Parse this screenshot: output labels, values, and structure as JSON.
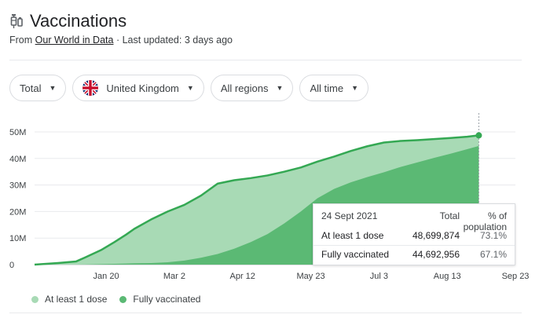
{
  "header": {
    "title": "Vaccinations",
    "icon": "syringe-icon"
  },
  "source": {
    "prefix": "From",
    "link": "Our World in Data",
    "updated": "· Last updated: 3 days ago"
  },
  "filters": [
    {
      "label": "Total"
    },
    {
      "label": "United Kingdom",
      "icon": "uk-flag-icon"
    },
    {
      "label": "All regions"
    },
    {
      "label": "All time"
    }
  ],
  "colors": {
    "light": "#a8dab5",
    "dark": "#5bb974",
    "line": "#34a853"
  },
  "tooltip": {
    "date": "24 Sept 2021",
    "col_total": "Total",
    "col_pct": "% of population",
    "rows": [
      {
        "label": "At least 1 dose",
        "total": "48,699,874",
        "pct": "73.1%"
      },
      {
        "label": "Fully vaccinated",
        "total": "44,692,956",
        "pct": "67.1%"
      }
    ]
  },
  "legend": [
    {
      "label": "At least 1 dose",
      "color": "#a8dab5"
    },
    {
      "label": "Fully vaccinated",
      "color": "#5bb974"
    }
  ],
  "chart_data": {
    "type": "area",
    "y_ticks": [
      "0",
      "10M",
      "20M",
      "30M",
      "40M",
      "50M"
    ],
    "x_ticks": [
      "Jan 20",
      "Mar 2",
      "Apr 12",
      "May 23",
      "Jul 3",
      "Aug 13",
      "Sep 23"
    ],
    "ylim": [
      0,
      50
    ],
    "y_unit": "millions",
    "x_days": [
      0,
      14,
      25,
      30,
      40,
      48,
      55,
      60,
      70,
      80,
      90,
      100,
      110,
      120,
      130,
      140,
      150,
      160,
      170,
      180,
      190,
      200,
      210,
      220,
      230,
      240,
      250,
      260,
      267
    ],
    "x_dates": [
      "2020-12-08",
      "2020-12-22",
      "2021-01-02",
      "2021-01-07",
      "2021-01-17",
      "2021-01-25",
      "2021-02-01",
      "2021-02-06",
      "2021-02-16",
      "2021-02-26",
      "2021-03-08",
      "2021-03-18",
      "2021-03-28",
      "2021-04-07",
      "2021-04-17",
      "2021-04-27",
      "2021-05-07",
      "2021-05-17",
      "2021-05-27",
      "2021-06-06",
      "2021-06-16",
      "2021-06-26",
      "2021-07-06",
      "2021-07-16",
      "2021-07-26",
      "2021-08-05",
      "2021-08-15",
      "2021-08-25",
      "2021-09-01"
    ],
    "x_tick_dates": [
      "2021-01-20",
      "2021-03-02",
      "2021-04-12",
      "2021-05-23",
      "2021-07-03",
      "2021-08-13",
      "2021-09-23"
    ],
    "series": [
      {
        "name": "At least 1 dose",
        "values": [
          0,
          0.6,
          1.2,
          2.6,
          5.5,
          8.5,
          11.3,
          13.5,
          17.0,
          20.0,
          22.5,
          26.0,
          30.5,
          31.8,
          32.6,
          33.6,
          35.0,
          36.6,
          38.8,
          40.7,
          42.8,
          44.6,
          46.0,
          46.6,
          46.9,
          47.3,
          47.7,
          48.2,
          48.7
        ]
      },
      {
        "name": "Fully vaccinated",
        "values": [
          0,
          0,
          0,
          0.05,
          0.2,
          0.3,
          0.4,
          0.5,
          0.6,
          0.9,
          1.5,
          2.6,
          4.0,
          6.0,
          8.5,
          11.5,
          15.5,
          20.0,
          25.0,
          28.5,
          31.0,
          33.0,
          34.8,
          36.8,
          38.5,
          40.2,
          41.8,
          43.5,
          44.7
        ]
      }
    ]
  }
}
